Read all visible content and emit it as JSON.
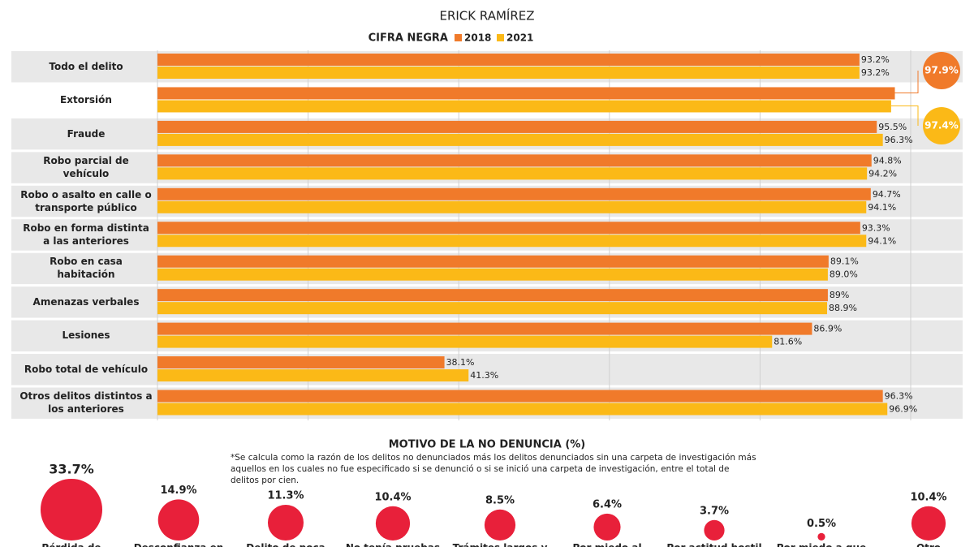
{
  "author": "ERICK RAMÍREZ",
  "chart_data": [
    {
      "type": "hbar",
      "title": "CIFRA NEGRA",
      "categories": [
        "Todo el delito",
        "Extorsión",
        "Fraude",
        "Robo parcial de vehículo",
        "Robo o asalto en calle o transporte público",
        "Robo en forma distinta a las anteriores",
        "Robo en casa habitación",
        "Amenazas verbales",
        "Lesiones",
        "Robo total de vehículo",
        "Otros delitos distintos a los anteriores"
      ],
      "series": [
        {
          "name": "2018",
          "color": "#f07a2a",
          "values": [
            93.2,
            97.9,
            95.5,
            94.8,
            94.7,
            93.3,
            89.1,
            89,
            86.9,
            38.1,
            96.3
          ],
          "value_labels": [
            "93.2%",
            "97.9%",
            "95.5%",
            "94.8%",
            "94.7%",
            "93.3%",
            "89.1%",
            "89%",
            "86.9%",
            "38.1%",
            "96.3%"
          ]
        },
        {
          "name": "2021",
          "color": "#fbb917",
          "values": [
            93.2,
            97.4,
            96.3,
            94.2,
            94.1,
            94.1,
            89.0,
            88.9,
            81.6,
            41.3,
            96.9
          ],
          "value_labels": [
            "93.2%",
            "97.4%",
            "96.3%",
            "94.2%",
            "94.1%",
            "94.1%",
            "89.0%",
            "88.9%",
            "81.6%",
            "41.3%",
            "96.9%"
          ]
        }
      ],
      "callouts": [
        1
      ],
      "xlim": [
        0,
        100
      ],
      "xticks": [
        0,
        20,
        40,
        60,
        80,
        100
      ],
      "grid": true
    },
    {
      "type": "bubble",
      "title": "MOTIVO DE LA NO DENUNCIA (%)",
      "note": "*Se calcula como la razón de los delitos no denunciados más los delitos denunciados sin una carpeta de investigación más aquellos en los cuales no fue especificado si se denunció o si se inició una carpeta de investigación, entre el total de delitos por cien.",
      "categories": [
        "Pérdida de tiempo",
        "Desconfianza en la autoridad",
        "Delito de poca importancia",
        "No tenía pruebas",
        "Trámites largos y difíciles",
        "Por miedo al agresor",
        "Por actitud hostil de la autoridad",
        "Por miedo a que lo extorsionaran",
        "Otro"
      ],
      "values": [
        33.7,
        14.9,
        11.3,
        10.4,
        8.5,
        6.4,
        3.7,
        0.5,
        10.4
      ],
      "value_labels": [
        "33.7%",
        "14.9%",
        "11.3%",
        "10.4%",
        "8.5%",
        "6.4%",
        "3.7%",
        "0.5%",
        "10.4%"
      ],
      "color": "#e8203a"
    }
  ]
}
